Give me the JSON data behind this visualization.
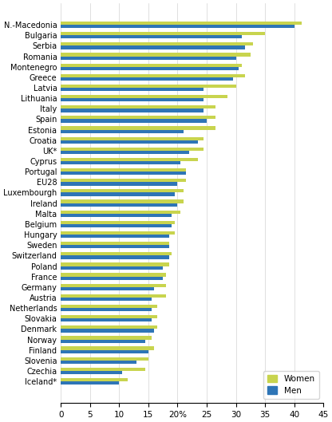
{
  "countries": [
    "N.-Macedonia",
    "Bulgaria",
    "Serbia",
    "Romania",
    "Montenegro",
    "Greece",
    "Latvia",
    "Lithuania",
    "Italy",
    "Spain",
    "Estonia",
    "Croatia",
    "UK*",
    "Cyprus",
    "Portugal",
    "EU28",
    "Luxembourgh",
    "Ireland",
    "Malta",
    "Belgium",
    "Hungary",
    "Sweden",
    "Switzerland",
    "Poland",
    "France",
    "Germany",
    "Austria",
    "Netherlands",
    "Slovakia",
    "Denmark",
    "Norway",
    "Finland",
    "Slovenia",
    "Czechia",
    "Iceland*"
  ],
  "women": [
    41.3,
    35.0,
    33.0,
    32.5,
    31.0,
    31.5,
    30.0,
    28.5,
    26.5,
    26.5,
    26.5,
    24.5,
    24.5,
    23.5,
    21.5,
    21.5,
    21.0,
    21.0,
    20.5,
    19.5,
    19.5,
    18.5,
    19.0,
    18.5,
    18.0,
    18.0,
    18.0,
    16.5,
    16.5,
    16.5,
    15.5,
    16.0,
    15.0,
    14.5,
    11.5
  ],
  "men": [
    40.0,
    31.0,
    31.5,
    30.0,
    30.5,
    29.5,
    24.5,
    24.5,
    24.5,
    25.0,
    21.0,
    23.5,
    22.0,
    20.5,
    21.5,
    20.0,
    19.5,
    20.0,
    19.0,
    19.0,
    18.5,
    18.5,
    18.5,
    17.5,
    17.5,
    16.0,
    15.5,
    15.5,
    15.5,
    16.0,
    14.5,
    15.0,
    13.0,
    10.5,
    10.0
  ],
  "color_women": "#c8d44e",
  "color_men": "#2e75b6",
  "xlim": [
    0,
    45
  ],
  "xticks": [
    0,
    5,
    10,
    15,
    20,
    25,
    30,
    35,
    40,
    45
  ],
  "bar_height": 0.32,
  "figsize": [
    4.16,
    5.29
  ],
  "dpi": 100,
  "tick_fontsize": 7.0,
  "xtick_fontsize": 7.5
}
